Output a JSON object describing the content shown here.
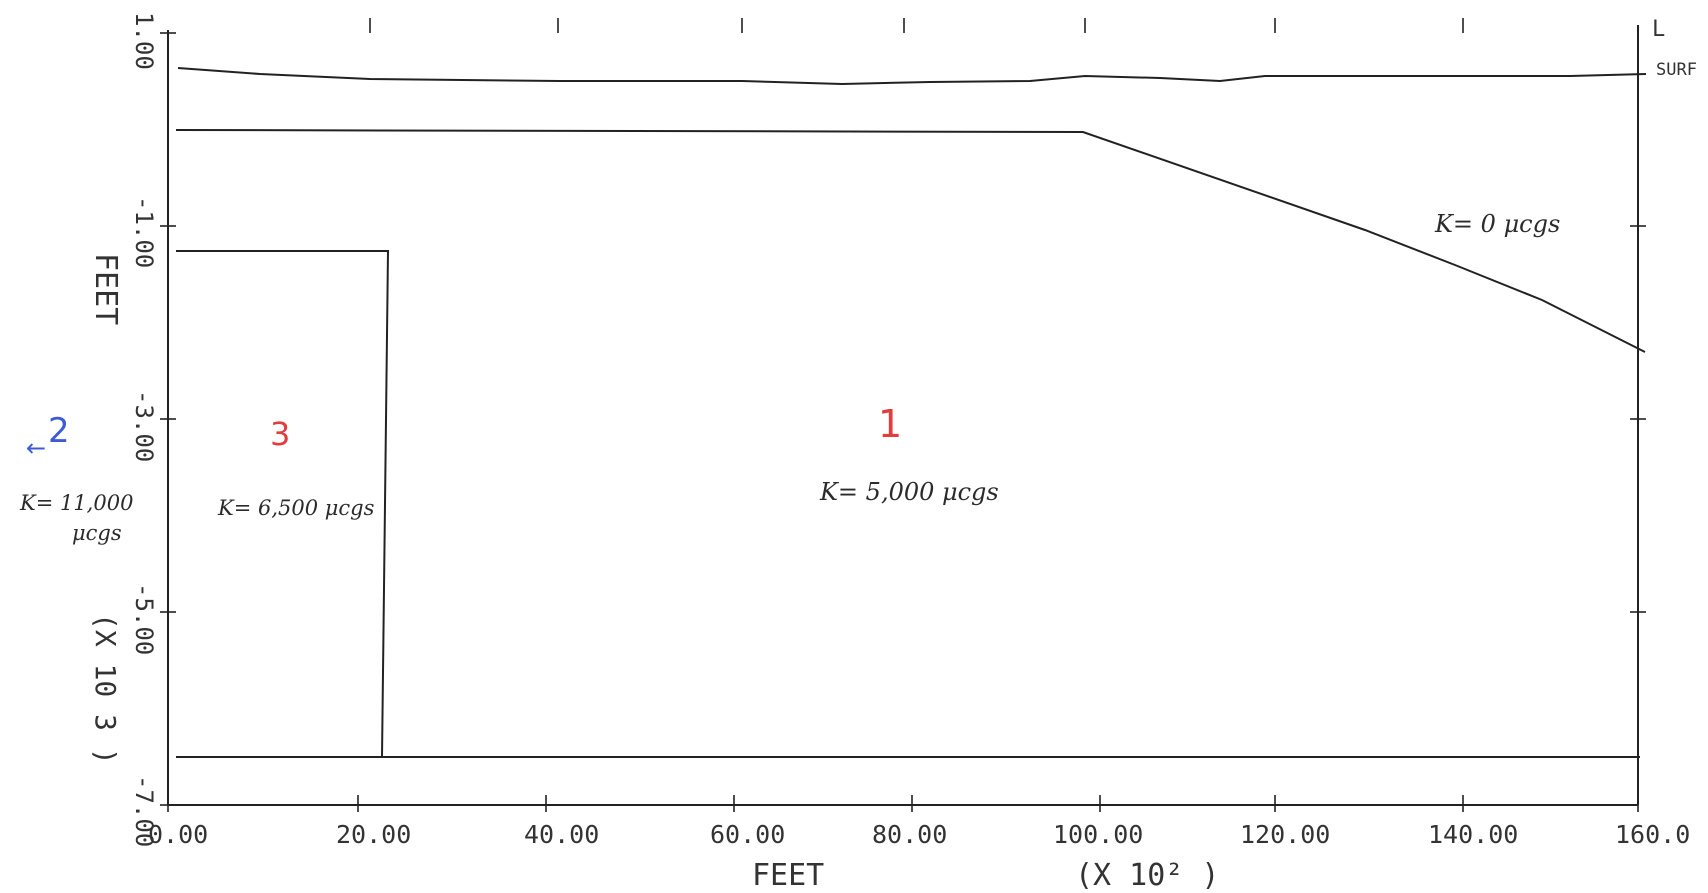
{
  "axes": {
    "x_ticks": [
      "0.00",
      "20.00",
      "40.00",
      "60.00",
      "80.00",
      "100.00",
      "120.00",
      "140.00",
      "160.0"
    ],
    "x_label": "FEET",
    "x_scale_note": "(X 10²  )",
    "y_ticks": [
      "1.00",
      "-1.00",
      "-3.00",
      "-5.00",
      "-7.00"
    ],
    "y_label": "FEET",
    "y_scale_note": "(X 10 3 )",
    "surface_label": "SURF",
    "corner_mark": "L"
  },
  "annotations": {
    "region_1_number": "1",
    "region_1_k": "K= 5,000 μcgs",
    "region_2_number": "2",
    "region_2_arrow": "←",
    "region_2_k_line1": "K= 11,000",
    "region_2_k_line2": "μcgs",
    "region_3_number": "3",
    "region_3_k": "K= 6,500 μcgs",
    "top_k": "K= 0 μcgs"
  },
  "colors": {
    "ink": "#222222",
    "red_annotation": "#e23c3c",
    "blue_annotation": "#3d5bd9"
  }
}
